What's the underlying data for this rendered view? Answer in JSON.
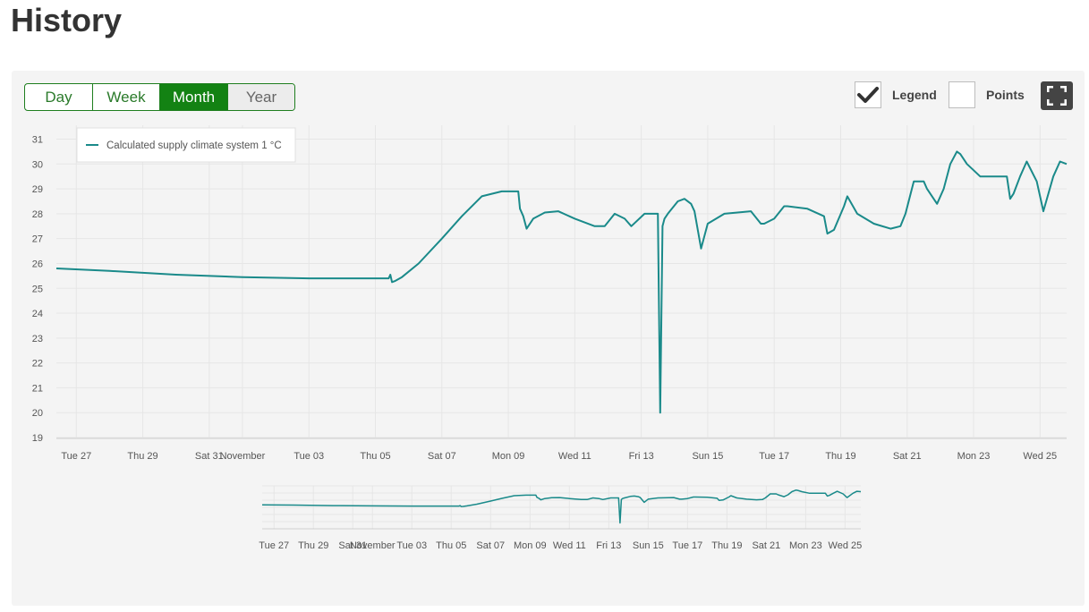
{
  "page": {
    "title": "History"
  },
  "range_tabs": [
    {
      "id": "day",
      "label": "Day",
      "state": "normal"
    },
    {
      "id": "week",
      "label": "Week",
      "state": "normal"
    },
    {
      "id": "month",
      "label": "Month",
      "state": "active"
    },
    {
      "id": "year",
      "label": "Year",
      "state": "hover"
    }
  ],
  "options": {
    "legend": {
      "label": "Legend",
      "checked": true,
      "icon": "check-icon"
    },
    "points": {
      "label": "Points",
      "checked": false
    }
  },
  "fullscreen": {
    "icon": "fullscreen-icon"
  },
  "colors": {
    "accent": "#138213",
    "series": "#1a8a8a",
    "panel": "#f4f4f4",
    "grid": "#e6e6e6"
  },
  "chart_data": {
    "type": "line",
    "title": "",
    "xlabel": "",
    "ylabel": "",
    "legend_placement": "top-left",
    "grid": true,
    "ylim": [
      19,
      31
    ],
    "yticks": [
      19,
      20,
      21,
      22,
      23,
      24,
      25,
      26,
      27,
      28,
      29,
      30,
      31
    ],
    "xlim": [
      -0.6,
      29.8
    ],
    "xticks": [
      {
        "x": 0,
        "label": "Tue 27"
      },
      {
        "x": 2,
        "label": "Thu 29"
      },
      {
        "x": 4,
        "label": "Sat 31"
      },
      {
        "x": 5,
        "label": "November"
      },
      {
        "x": 7,
        "label": "Tue 03"
      },
      {
        "x": 9,
        "label": "Thu 05"
      },
      {
        "x": 11,
        "label": "Sat 07"
      },
      {
        "x": 13,
        "label": "Mon 09"
      },
      {
        "x": 15,
        "label": "Wed 11"
      },
      {
        "x": 17,
        "label": "Fri 13"
      },
      {
        "x": 19,
        "label": "Sun 15"
      },
      {
        "x": 21,
        "label": "Tue 17"
      },
      {
        "x": 23,
        "label": "Thu 19"
      },
      {
        "x": 25,
        "label": "Sat 21"
      },
      {
        "x": 27,
        "label": "Mon 23"
      },
      {
        "x": 29,
        "label": "Wed 25"
      }
    ],
    "series": [
      {
        "name": "Calculated supply climate system 1 °C",
        "x": [
          -0.6,
          1,
          3,
          5,
          7,
          9.4,
          9.45,
          9.5,
          9.6,
          9.8,
          10.3,
          11,
          11.6,
          12.2,
          12.8,
          13.3,
          13.35,
          13.45,
          13.55,
          13.75,
          14.1,
          14.5,
          15,
          15.6,
          15.9,
          16.2,
          16.5,
          16.7,
          17.1,
          17.5,
          17.57,
          17.64,
          17.7,
          17.8,
          18.1,
          18.3,
          18.5,
          18.6,
          18.8,
          19,
          19.5,
          20.3,
          20.6,
          20.7,
          21,
          21.3,
          21.4,
          22,
          22.5,
          22.6,
          22.8,
          23.1,
          23.2,
          23.5,
          24,
          24.5,
          24.8,
          24.95,
          25.2,
          25.5,
          25.6,
          25.9,
          26.1,
          26.3,
          26.5,
          26.6,
          26.8,
          27.2,
          27.3,
          27.6,
          27.7,
          27.9,
          28,
          28.1,
          28.2,
          28.4,
          28.6,
          28.9,
          29.1,
          29.4,
          29.6,
          29.8
        ],
        "y": [
          25.8,
          25.7,
          25.55,
          25.45,
          25.4,
          25.4,
          25.55,
          25.25,
          25.3,
          25.45,
          26.0,
          27.0,
          27.9,
          28.7,
          28.9,
          28.9,
          28.2,
          27.9,
          27.4,
          27.8,
          28.05,
          28.1,
          27.8,
          27.5,
          27.5,
          28.0,
          27.8,
          27.5,
          28.0,
          28.0,
          20.0,
          27.5,
          27.8,
          28.0,
          28.5,
          28.6,
          28.4,
          28.1,
          26.6,
          27.6,
          28.0,
          28.1,
          27.6,
          27.6,
          27.8,
          28.3,
          28.3,
          28.2,
          27.9,
          27.2,
          27.35,
          28.3,
          28.7,
          28.0,
          27.6,
          27.4,
          27.5,
          28.0,
          29.3,
          29.3,
          29.0,
          28.4,
          29.0,
          30.0,
          30.5,
          30.4,
          30.0,
          29.5,
          29.5,
          29.5,
          29.5,
          29.5,
          29.5,
          28.6,
          28.8,
          29.5,
          30.1,
          29.3,
          28.1,
          29.5,
          30.1,
          30.0
        ]
      }
    ]
  }
}
